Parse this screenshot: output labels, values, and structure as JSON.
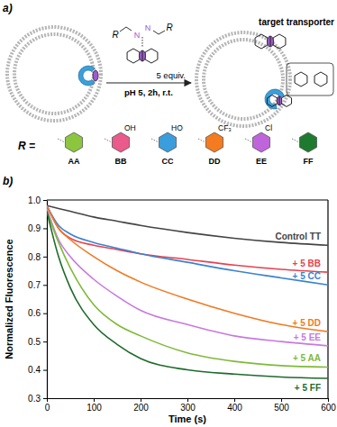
{
  "panel_a": {
    "label": "a)",
    "reagent": {
      "r": "R",
      "n": "N"
    },
    "reagent_amount": "5 equiv.",
    "conditions": "pH 5, 2h, r.t.",
    "product_label": "target transporter",
    "r_label": "R =",
    "r_groups": [
      {
        "name": "AA",
        "color": "#8cc63f"
      },
      {
        "name": "BB",
        "color": "#ea5a8a",
        "substituent": "OH"
      },
      {
        "name": "CC",
        "color": "#3a9ddc",
        "substituent": "HO"
      },
      {
        "name": "DD",
        "color": "#f47b20",
        "substituent": "CF₃"
      },
      {
        "name": "EE",
        "color": "#c064dc",
        "substituent": "Cl"
      },
      {
        "name": "FF",
        "color": "#1e7a2e"
      }
    ]
  },
  "chart_data": {
    "type": "line",
    "annotations": [
      "b)"
    ],
    "x_label": "Time (s)",
    "y_label": "Normalized Fluorescence",
    "x": [
      0,
      25,
      50,
      100,
      150,
      200,
      300,
      400,
      500,
      600
    ],
    "xlim": [
      0,
      600
    ],
    "xticks": [
      0,
      100,
      200,
      300,
      400,
      500,
      600
    ],
    "ylim": [
      0.3,
      1.0
    ],
    "yticks": [
      0.3,
      0.4,
      0.5,
      0.6,
      0.7,
      0.8,
      0.9,
      {
        "value": 1,
        "label": "1.0"
      }
    ],
    "series": [
      {
        "name": "Control TT",
        "color": "#444444",
        "values": [
          0.98,
          0.97,
          0.96,
          0.94,
          0.925,
          0.91,
          0.885,
          0.865,
          0.85,
          0.84
        ]
      },
      {
        "name": "+ 5 BB",
        "color": "#e8414f",
        "values": [
          0.98,
          0.9,
          0.865,
          0.84,
          0.825,
          0.81,
          0.79,
          0.77,
          0.755,
          0.745
        ]
      },
      {
        "name": "+ 5 CC",
        "color": "#3c82d0",
        "values": [
          0.98,
          0.91,
          0.88,
          0.85,
          0.83,
          0.81,
          0.78,
          0.75,
          0.725,
          0.7
        ]
      },
      {
        "name": "+ 5 DD",
        "color": "#f07a22",
        "values": [
          0.98,
          0.9,
          0.86,
          0.8,
          0.75,
          0.71,
          0.65,
          0.6,
          0.56,
          0.535
        ]
      },
      {
        "name": "+ 5 EE",
        "color": "#c978e0",
        "values": [
          0.97,
          0.86,
          0.8,
          0.72,
          0.66,
          0.61,
          0.56,
          0.52,
          0.5,
          0.485
        ]
      },
      {
        "name": "+ 5 AA",
        "color": "#7fba3a",
        "values": [
          0.96,
          0.85,
          0.76,
          0.63,
          0.56,
          0.52,
          0.46,
          0.43,
          0.415,
          0.41
        ]
      },
      {
        "name": "+ 5 FF",
        "color": "#1e6b2a",
        "values": [
          0.96,
          0.8,
          0.69,
          0.56,
          0.49,
          0.44,
          0.4,
          0.385,
          0.375,
          0.37
        ]
      }
    ]
  }
}
